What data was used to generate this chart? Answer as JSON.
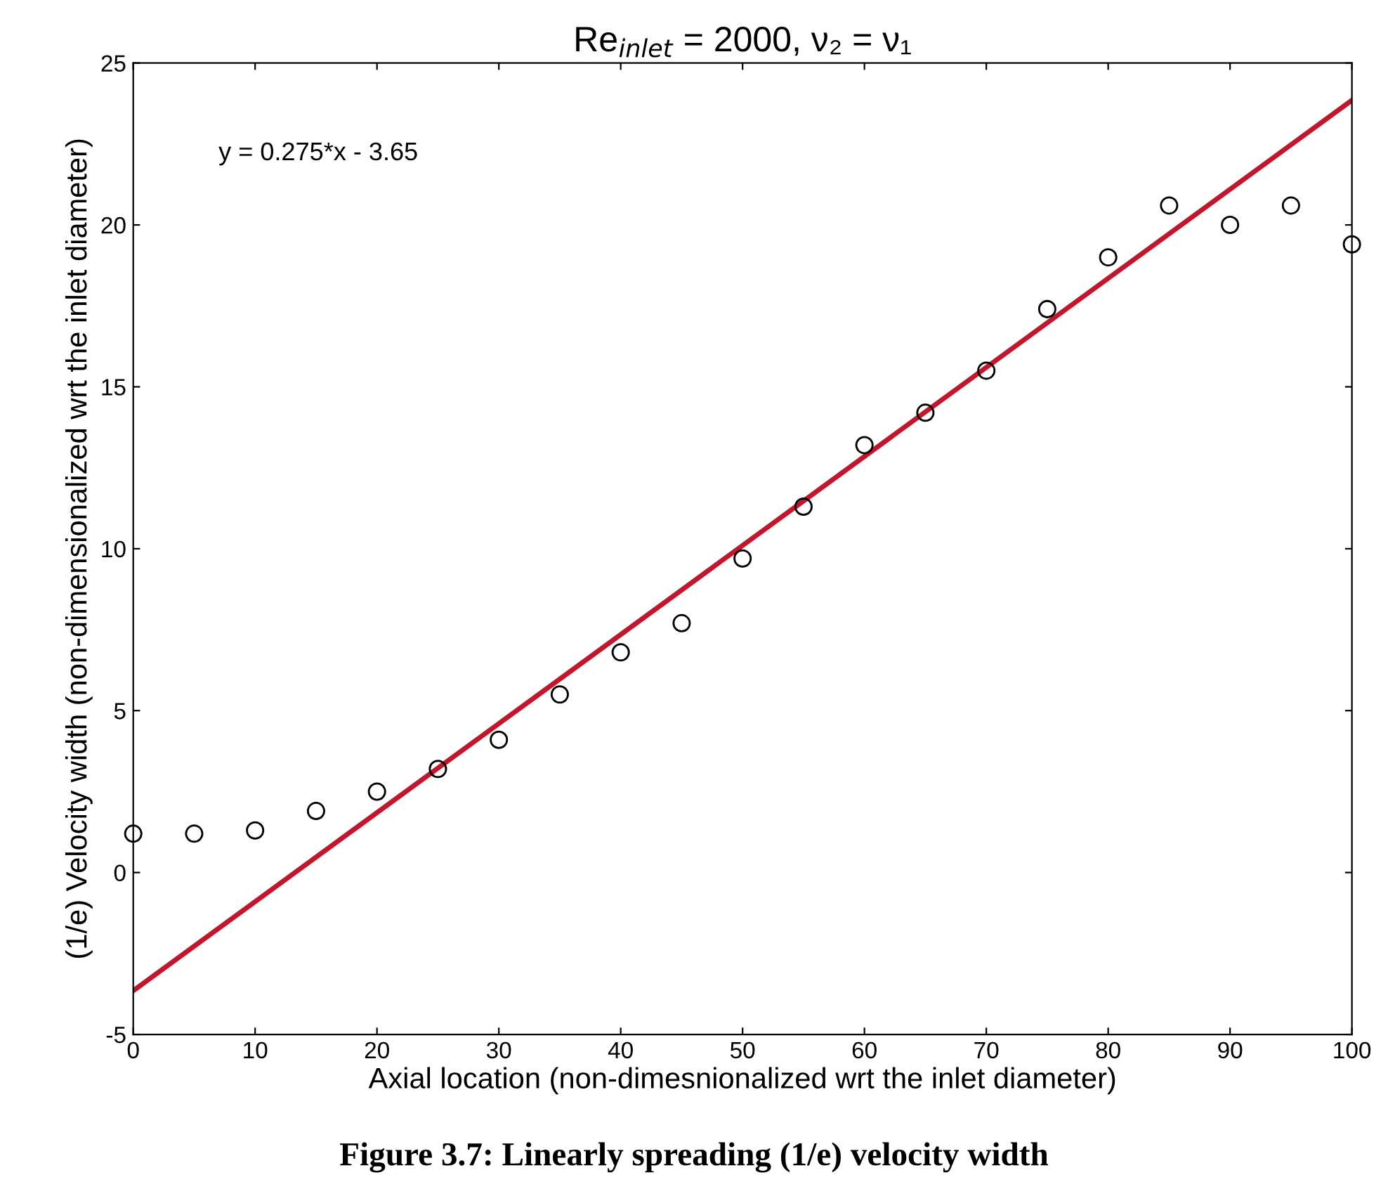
{
  "chart_data": {
    "type": "scatter",
    "title": "Re$_{inlet}$ = 2000, ν₂ = ν₁",
    "xlabel": "Axial location (non-dimesnionalized wrt the inlet diameter)",
    "ylabel": "(1/e) Velocity width (non-dimensionalized wrt the inlet diameter)",
    "annotations": [
      "y = 0.275*x - 3.65",
      "Figure 3.7: Linearly spreading (1/e) velocity width"
    ],
    "x": [
      0,
      5,
      10,
      15,
      20,
      25,
      30,
      35,
      40,
      45,
      50,
      55,
      60,
      65,
      70,
      75,
      80,
      85,
      90,
      95,
      100
    ],
    "series": [
      {
        "color": "#000000",
        "marker": "circle",
        "values": [
          1.2,
          1.2,
          1.3,
          1.9,
          2.5,
          3.2,
          4.1,
          5.5,
          6.8,
          7.7,
          9.7,
          11.3,
          13.2,
          14.2,
          15.5,
          17.4,
          19.0,
          20.6,
          20.0,
          20.6,
          19.4
        ]
      },
      {
        "type": "line",
        "color": "#c0172c",
        "marker": "none",
        "line_style": "solid",
        "x": [
          0,
          100
        ],
        "values": [
          -3.65,
          23.85
        ]
      }
    ],
    "xlim": [
      0,
      100
    ],
    "ylim": [
      -5,
      25
    ],
    "xticks": [
      0,
      10,
      20,
      30,
      40,
      50,
      60,
      70,
      80,
      90,
      100
    ],
    "yticks": [
      -5,
      0,
      5,
      10,
      15,
      20,
      25
    ],
    "grid": false,
    "legend": false
  }
}
